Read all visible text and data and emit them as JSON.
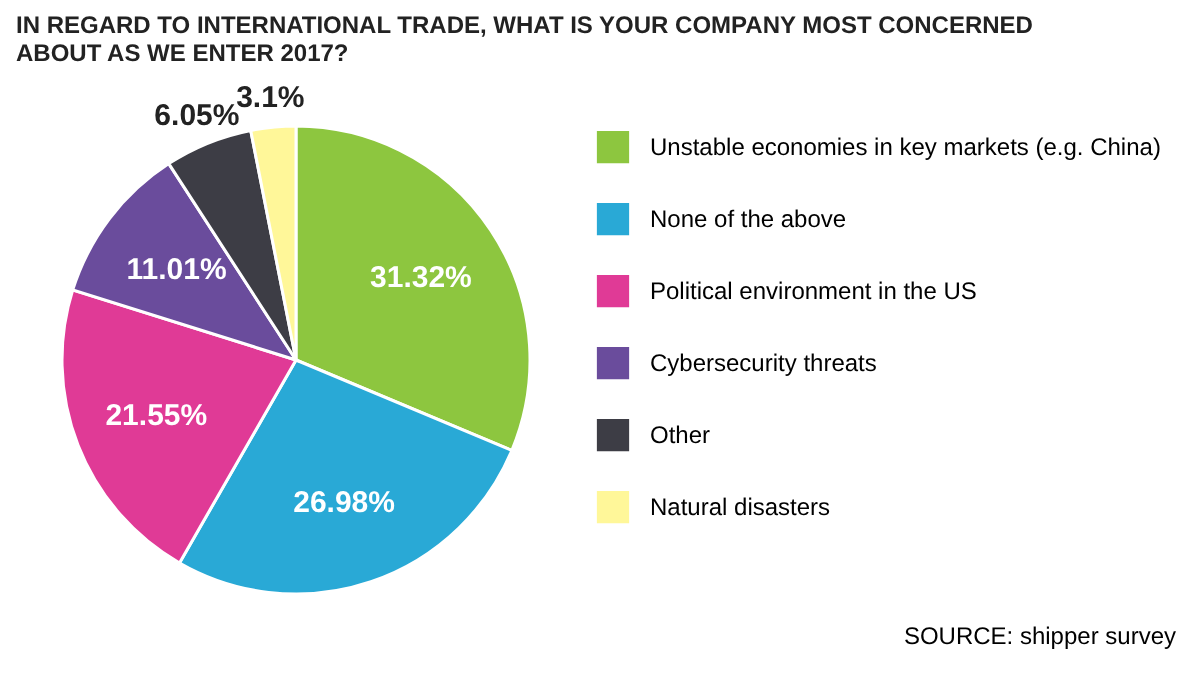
{
  "chart_data": {
    "type": "pie",
    "title": "IN REGARD TO INTERNATIONAL TRADE, WHAT IS YOUR COMPANY MOST CONCERNED ABOUT AS WE ENTER 2017?",
    "categories": [
      "Unstable economies in key markets (e.g. China)",
      "None of the above",
      "Political environment in the US",
      "Cybersecurity threats",
      "Other",
      "Natural disasters"
    ],
    "values": [
      31.32,
      26.98,
      21.55,
      11.01,
      6.05,
      3.1
    ],
    "colors": [
      "#8dc63f",
      "#29a9d6",
      "#e03a96",
      "#6a4c9c",
      "#3d3d45",
      "#fff799"
    ],
    "value_labels": [
      "31.32%",
      "26.98%",
      "21.55%",
      "11.01%",
      "6.05%",
      "3.1%"
    ],
    "legend": "right",
    "annotations": [
      "SOURCE: shipper survey"
    ]
  }
}
